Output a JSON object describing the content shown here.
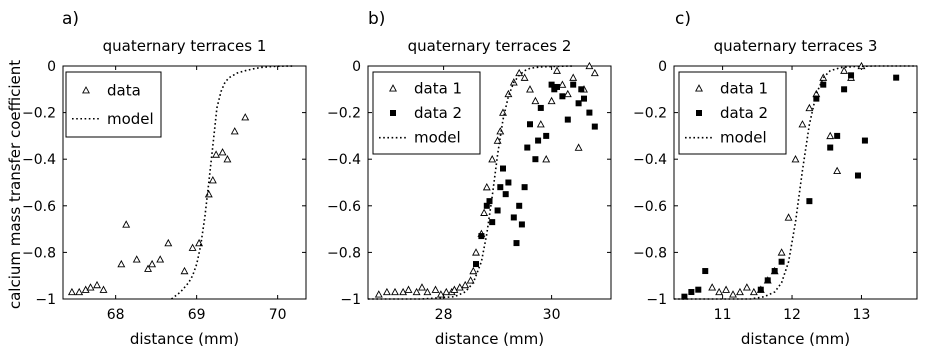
{
  "chart_data": [
    {
      "type": "scatter",
      "panel_label": "a)",
      "title": "quaternary terraces 1",
      "xlabel": "distance (mm)",
      "ylabel": "calcium mass transfer coefficient",
      "xlim": [
        67.35,
        70.35
      ],
      "ylim": [
        -1,
        0
      ],
      "xticks": [
        68,
        69,
        70
      ],
      "yticks": [
        0,
        -0.2,
        -0.4,
        -0.6,
        -0.8,
        -1
      ],
      "ytick_labels": [
        "0",
        "−0.2",
        "−0.4",
        "−0.6",
        "−0.8",
        "−1"
      ],
      "legend_position": "top-left",
      "series": [
        {
          "name": "data",
          "marker": "triangle",
          "style": "scatter",
          "x": [
            67.46,
            67.55,
            67.63,
            67.69,
            67.77,
            67.85,
            68.07,
            68.13,
            68.26,
            68.4,
            68.45,
            68.55,
            68.65,
            68.85,
            68.95,
            69.03,
            69.15,
            69.2,
            69.24,
            69.32,
            69.38,
            69.47,
            69.6
          ],
          "y": [
            -0.97,
            -0.97,
            -0.96,
            -0.95,
            -0.94,
            -0.96,
            -0.85,
            -0.68,
            -0.83,
            -0.87,
            -0.85,
            -0.83,
            -0.76,
            -0.88,
            -0.78,
            -0.76,
            -0.55,
            -0.49,
            -0.38,
            -0.37,
            -0.4,
            -0.28,
            -0.22
          ]
        },
        {
          "name": "model",
          "style": "dotted-line",
          "x": [
            68.69,
            68.8,
            68.9,
            68.95,
            69.0,
            69.05,
            69.1,
            69.15,
            69.2,
            69.25,
            69.3,
            69.35,
            69.4,
            69.5,
            69.6,
            69.7,
            69.8,
            69.9,
            70.0,
            70.2
          ],
          "y": [
            -1,
            -0.97,
            -0.93,
            -0.9,
            -0.85,
            -0.77,
            -0.65,
            -0.5,
            -0.34,
            -0.18,
            -0.11,
            -0.07,
            -0.05,
            -0.03,
            -0.02,
            -0.012,
            -0.006,
            -0.003,
            -0.001,
            0
          ]
        }
      ]
    },
    {
      "type": "scatter",
      "panel_label": "b)",
      "title": "quaternary terraces 2",
      "xlabel": "distance (mm)",
      "ylabel": "",
      "xlim": [
        26.6,
        31.1
      ],
      "ylim": [
        -1,
        0
      ],
      "xticks": [
        28,
        30
      ],
      "yticks": [
        0,
        -0.2,
        -0.4,
        -0.6,
        -0.8,
        -1
      ],
      "ytick_labels": [
        "0",
        "−0.2",
        "−0.4",
        "−0.6",
        "−0.8",
        "−1"
      ],
      "legend_position": "top-left",
      "series": [
        {
          "name": "data 1",
          "marker": "triangle",
          "style": "scatter",
          "x": [
            26.8,
            26.95,
            27.1,
            27.25,
            27.35,
            27.5,
            27.6,
            27.7,
            27.85,
            27.95,
            28.05,
            28.15,
            28.2,
            28.3,
            28.4,
            28.5,
            28.55,
            28.6,
            28.7,
            28.75,
            28.8,
            28.9,
            29.0,
            29.05,
            29.1,
            29.2,
            29.3,
            29.4,
            29.5,
            29.6,
            29.7,
            29.8,
            29.9,
            30.0,
            30.1,
            30.2,
            30.3,
            30.4,
            30.5,
            30.6,
            30.7,
            30.8
          ],
          "y": [
            -0.98,
            -0.97,
            -0.97,
            -0.97,
            -0.96,
            -0.97,
            -0.95,
            -0.97,
            -0.96,
            -0.98,
            -0.97,
            -0.97,
            -0.96,
            -0.95,
            -0.94,
            -0.92,
            -0.88,
            -0.8,
            -0.72,
            -0.63,
            -0.52,
            -0.4,
            -0.32,
            -0.28,
            -0.2,
            -0.12,
            -0.07,
            -0.03,
            -0.05,
            -0.1,
            -0.15,
            -0.25,
            -0.4,
            -0.15,
            -0.02,
            -0.08,
            -0.12,
            -0.05,
            -0.35,
            -0.1,
            0,
            -0.03
          ]
        },
        {
          "name": "data 2",
          "marker": "square",
          "style": "scatter",
          "x": [
            28.6,
            28.7,
            28.8,
            28.85,
            28.9,
            29.0,
            29.05,
            29.1,
            29.15,
            29.2,
            29.3,
            29.35,
            29.4,
            29.45,
            29.5,
            29.55,
            29.6,
            29.7,
            29.75,
            29.8,
            29.9,
            30.0,
            30.05,
            30.1,
            30.2,
            30.3,
            30.4,
            30.5,
            30.55,
            30.6,
            30.7,
            30.8
          ],
          "y": [
            -0.85,
            -0.73,
            -0.6,
            -0.58,
            -0.67,
            -0.62,
            -0.52,
            -0.44,
            -0.55,
            -0.5,
            -0.65,
            -0.76,
            -0.6,
            -0.68,
            -0.52,
            -0.35,
            -0.25,
            -0.4,
            -0.32,
            -0.18,
            -0.3,
            -0.08,
            -0.1,
            -0.09,
            -0.13,
            -0.23,
            -0.08,
            -0.16,
            -0.1,
            -0.14,
            -0.2,
            -0.26
          ]
        },
        {
          "name": "model",
          "style": "dotted-line",
          "x": [
            26.6,
            27.6,
            28.2,
            28.4,
            28.55,
            28.7,
            28.8,
            28.9,
            29.0,
            29.1,
            29.2,
            29.3,
            29.4,
            29.5,
            29.6,
            29.8,
            30.0,
            30.2,
            30.4
          ],
          "y": [
            -1,
            -1,
            -0.99,
            -0.97,
            -0.93,
            -0.84,
            -0.72,
            -0.56,
            -0.38,
            -0.23,
            -0.13,
            -0.07,
            -0.04,
            -0.02,
            -0.01,
            -0.004,
            -0.002,
            -0.001,
            0
          ]
        }
      ]
    },
    {
      "type": "scatter",
      "panel_label": "c)",
      "title": "quaternary terraces 3",
      "xlabel": "distance (mm)",
      "ylabel": "",
      "xlim": [
        10.3,
        13.8
      ],
      "ylim": [
        -1,
        0
      ],
      "xticks": [
        11,
        12,
        13
      ],
      "yticks": [
        0,
        -0.2,
        -0.4,
        -0.6,
        -0.8,
        -1
      ],
      "ytick_labels": [
        "0",
        "−0.2",
        "−0.4",
        "−0.6",
        "−0.8",
        "−1"
      ],
      "legend_position": "top-left",
      "series": [
        {
          "name": "data 1",
          "marker": "triangle",
          "style": "scatter",
          "x": [
            10.85,
            10.95,
            11.05,
            11.15,
            11.25,
            11.35,
            11.45,
            11.55,
            11.65,
            11.75,
            11.85,
            11.95,
            12.05,
            12.15,
            12.25,
            12.35,
            12.45,
            12.55,
            12.65,
            12.75,
            12.85,
            13.0
          ],
          "y": [
            -0.95,
            -0.97,
            -0.96,
            -0.98,
            -0.97,
            -0.95,
            -0.97,
            -0.96,
            -0.92,
            -0.88,
            -0.8,
            -0.65,
            -0.4,
            -0.25,
            -0.18,
            -0.12,
            -0.05,
            -0.3,
            -0.45,
            -0.02,
            -0.05,
            0
          ]
        },
        {
          "name": "data 2",
          "marker": "square",
          "style": "scatter",
          "x": [
            10.45,
            10.55,
            10.65,
            10.75,
            11.55,
            11.65,
            11.75,
            11.85,
            12.25,
            12.35,
            12.45,
            12.55,
            12.65,
            12.75,
            12.85,
            12.95,
            13.05,
            13.5
          ],
          "y": [
            -0.99,
            -0.97,
            -0.96,
            -0.88,
            -0.96,
            -0.92,
            -0.88,
            -0.84,
            -0.58,
            -0.14,
            -0.08,
            -0.35,
            -0.3,
            -0.1,
            -0.04,
            -0.47,
            -0.32,
            -0.05
          ]
        },
        {
          "name": "model",
          "style": "dotted-line",
          "x": [
            10.3,
            11.4,
            11.6,
            11.75,
            11.85,
            11.95,
            12.05,
            12.15,
            12.25,
            12.35,
            12.45,
            12.55,
            12.7,
            12.9,
            13.2,
            13.8
          ],
          "y": [
            -1,
            -1,
            -0.99,
            -0.97,
            -0.93,
            -0.84,
            -0.67,
            -0.45,
            -0.25,
            -0.12,
            -0.05,
            -0.02,
            -0.007,
            -0.002,
            0,
            0
          ]
        }
      ]
    }
  ]
}
